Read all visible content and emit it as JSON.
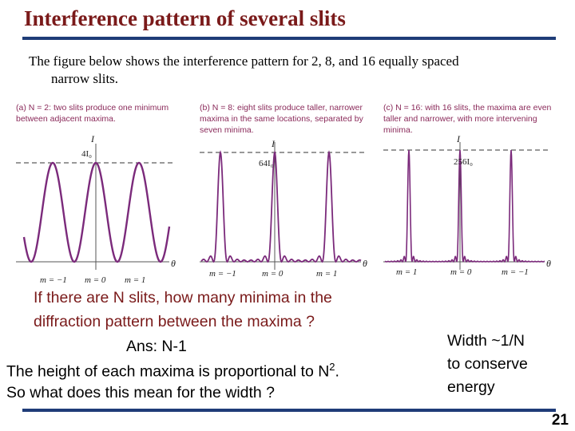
{
  "title": "Interference pattern of several slits",
  "intro": {
    "line1": "The figure below shows the interference pattern for 2, 8, and 16 equally spaced",
    "line2": "narrow slits."
  },
  "panels": [
    {
      "caption": [
        "(a) N = 2: two slits produce one minimum",
        "between adjacent maxima."
      ],
      "axis_label": "I",
      "peak_label": "4I₀",
      "theta": "θ",
      "ticks": [
        "m = −1",
        "m = 0",
        "m = 1"
      ]
    },
    {
      "caption": [
        "(b) N = 8: eight slits produce taller, narrower",
        "maxima in the same locations, separated by",
        "seven minima."
      ],
      "axis_label": "I",
      "peak_label": "64I₀",
      "theta": "θ",
      "ticks": [
        "m = −1",
        "m = 0",
        "m = 1"
      ]
    },
    {
      "caption": [
        "(c) N = 16: with 16 slits, the maxima are even",
        "taller and narrower, with more intervening",
        "minima."
      ],
      "axis_label": "I",
      "peak_label": "256I₀",
      "theta": "θ",
      "ticks": [
        "m = 1",
        "m = 0",
        "m = −1"
      ]
    }
  ],
  "question": {
    "line1": "If there are N slits, how many minima in the",
    "line2": "diffraction pattern between the maxima ?"
  },
  "answer": "Ans: N-1",
  "height_line": {
    "before": "The height of each maxima is  proportional to N",
    "sup": "2",
    "after": "."
  },
  "width_question": "So what does this mean for the width ?",
  "side_note": [
    "Width  ~1/N",
    "to conserve",
    "energy"
  ],
  "page_number": "21",
  "colors": {
    "title": "#7a1a1a",
    "rule": "#1f3c78",
    "curve": "#7b2a7b",
    "caption": "#8a2a5a"
  }
}
